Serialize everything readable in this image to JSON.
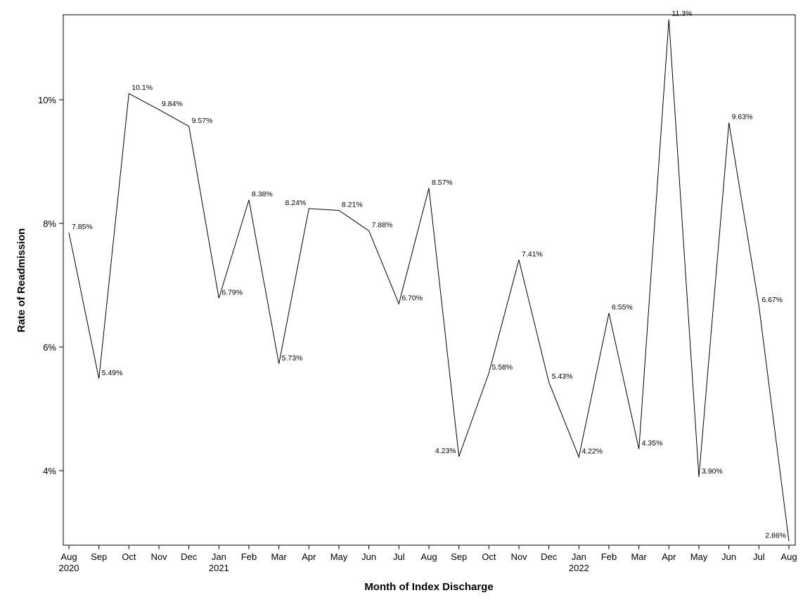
{
  "chart_data": {
    "type": "line",
    "xlabel": "Month of Index Discharge",
    "ylabel": "Rate of Readmission",
    "ylim": [
      2.8,
      11.4
    ],
    "yticks": [
      4,
      6,
      8,
      10
    ],
    "ytick_labels": [
      "4%",
      "6%",
      "8%",
      "10%"
    ],
    "grid": false,
    "legend": "none",
    "categories": [
      "Aug",
      "Sep",
      "Oct",
      "Nov",
      "Dec",
      "Jan",
      "Feb",
      "Mar",
      "Apr",
      "May",
      "Jun",
      "Jul",
      "Aug",
      "Sep",
      "Oct",
      "Nov",
      "Dec",
      "Jan",
      "Feb",
      "Mar",
      "Apr",
      "May",
      "Jun",
      "Jul",
      "Aug"
    ],
    "year_labels": [
      {
        "index": 0,
        "label": "2020"
      },
      {
        "index": 5,
        "label": "2021"
      },
      {
        "index": 17,
        "label": "2022"
      }
    ],
    "values": [
      7.85,
      5.49,
      10.1,
      9.84,
      9.57,
      6.79,
      8.38,
      5.73,
      8.24,
      8.21,
      7.88,
      6.7,
      8.57,
      4.23,
      5.58,
      7.41,
      5.43,
      4.22,
      6.55,
      4.35,
      11.3,
      3.9,
      9.63,
      6.67,
      2.86
    ],
    "data_labels": [
      "7.85%",
      "5.49%",
      "10.1%",
      "9.84%",
      "9.57%",
      "6.79%",
      "8.38%",
      "5.73%",
      "8.24%",
      "8.21%",
      "7.88%",
      "6.70%",
      "8.57%",
      "4.23%",
      "5.58%",
      "7.41%",
      "5.43%",
      "4.22%",
      "6.55%",
      "4.35%",
      "11.3%",
      "3.90%",
      "9.63%",
      "6.67%",
      "2.86%"
    ],
    "label_positions": [
      "right",
      "right",
      "right",
      "right",
      "right",
      "right",
      "right",
      "right",
      "left",
      "right",
      "right",
      "right",
      "right",
      "left",
      "right",
      "right",
      "right",
      "right",
      "right",
      "right",
      "right",
      "right",
      "right",
      "right",
      "left"
    ],
    "line_color": "#000000"
  }
}
